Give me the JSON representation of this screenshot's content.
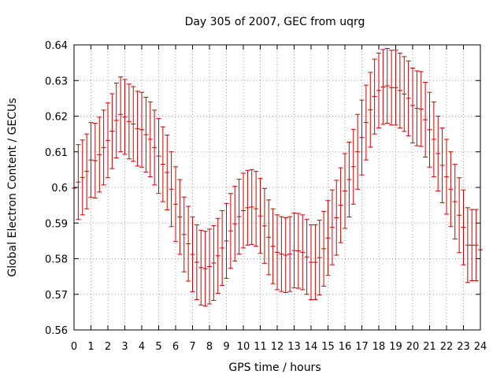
{
  "chart_data": {
    "type": "scatter",
    "title": "Day 305 of 2007, GEC from uqrg",
    "xlabel": "GPS time / hours",
    "ylabel": "Global Electron Content / GECUs",
    "xlim": [
      0,
      24
    ],
    "ylim": [
      0.56,
      0.64
    ],
    "xticks": [
      "0",
      "1",
      "2",
      "3",
      "4",
      "5",
      "6",
      "7",
      "8",
      "9",
      "10",
      "11",
      "12",
      "13",
      "14",
      "15",
      "16",
      "17",
      "18",
      "19",
      "20",
      "21",
      "22",
      "23",
      "24"
    ],
    "yticks": [
      "0.56",
      "0.57",
      "0.58",
      "0.59",
      "0.6",
      "0.61",
      "0.62",
      "0.63",
      "0.64"
    ],
    "grid": true,
    "error_color": "#cc0000",
    "series": [
      {
        "x": [
          0,
          0.25,
          0.5,
          0.75,
          1,
          1.25,
          1.5,
          1.75,
          2,
          2.25,
          2.5,
          2.75,
          3,
          3.25,
          3.5,
          3.75,
          4,
          4.25,
          4.5,
          4.75,
          5,
          5.25,
          5.5,
          5.75,
          6,
          6.25,
          6.5,
          6.75,
          7,
          7.25,
          7.5,
          7.75,
          8,
          8.25,
          8.5,
          8.75,
          9,
          9.25,
          9.5,
          9.75,
          10,
          10.25,
          10.5,
          10.75,
          11,
          11.25,
          11.5,
          11.75,
          12,
          12.25,
          12.5,
          12.75,
          13,
          13.25,
          13.5,
          13.75,
          14,
          14.25,
          14.5,
          14.75,
          15,
          15.25,
          15.5,
          15.75,
          16,
          16.25,
          16.5,
          16.75,
          17,
          17.25,
          17.5,
          17.75,
          18,
          18.25,
          18.5,
          18.75,
          19,
          19.25,
          19.5,
          19.75,
          20,
          20.25,
          20.5,
          20.75,
          21,
          21.25,
          21.5,
          21.75,
          22,
          22.25,
          22.5,
          22.75,
          23,
          23.25,
          23.5,
          23.75,
          24
        ],
        "y": [
          0.5998,
          0.6015,
          0.6028,
          0.6045,
          0.6077,
          0.6075,
          0.6092,
          0.6112,
          0.6132,
          0.6158,
          0.6188,
          0.6205,
          0.6198,
          0.6185,
          0.6178,
          0.6165,
          0.6162,
          0.6148,
          0.6135,
          0.6112,
          0.6088,
          0.6065,
          0.6042,
          0.5995,
          0.5953,
          0.5917,
          0.5868,
          0.5842,
          0.5812,
          0.579,
          0.5775,
          0.5772,
          0.5778,
          0.5788,
          0.5808,
          0.583,
          0.585,
          0.5878,
          0.5898,
          0.5918,
          0.5935,
          0.5943,
          0.5945,
          0.594,
          0.592,
          0.5892,
          0.586,
          0.5835,
          0.5818,
          0.5813,
          0.581,
          0.5813,
          0.5823,
          0.5822,
          0.5818,
          0.5805,
          0.579,
          0.579,
          0.5803,
          0.5828,
          0.5858,
          0.5888,
          0.5915,
          0.595,
          0.599,
          0.6022,
          0.6058,
          0.61,
          0.614,
          0.6182,
          0.6218,
          0.6255,
          0.6272,
          0.6282,
          0.6285,
          0.628,
          0.628,
          0.6272,
          0.6262,
          0.625,
          0.623,
          0.6222,
          0.622,
          0.619,
          0.6162,
          0.6135,
          0.6095,
          0.6062,
          0.603,
          0.5995,
          0.596,
          0.5922,
          0.5888,
          0.5838,
          0.5838,
          0.5838,
          0.5825
        ],
        "err": [
          0.0105,
          0.0105,
          0.0105,
          0.0105,
          0.0105,
          0.0105,
          0.0105,
          0.0105,
          0.0105,
          0.0105,
          0.0105,
          0.0105,
          0.0105,
          0.0105,
          0.0105,
          0.0105,
          0.0105,
          0.0105,
          0.0105,
          0.0105,
          0.0105,
          0.0105,
          0.0105,
          0.0105,
          0.0105,
          0.0105,
          0.0105,
          0.0105,
          0.0105,
          0.0105,
          0.0105,
          0.0105,
          0.0105,
          0.0105,
          0.0105,
          0.0105,
          0.0105,
          0.0105,
          0.0105,
          0.0105,
          0.0105,
          0.0105,
          0.0105,
          0.0105,
          0.0105,
          0.0105,
          0.0105,
          0.0105,
          0.0105,
          0.0105,
          0.0105,
          0.0105,
          0.0105,
          0.0105,
          0.0105,
          0.0105,
          0.0105,
          0.0105,
          0.0105,
          0.0105,
          0.0105,
          0.0105,
          0.0105,
          0.0105,
          0.0105,
          0.0105,
          0.0105,
          0.0105,
          0.0105,
          0.0105,
          0.0105,
          0.0105,
          0.0105,
          0.0105,
          0.0105,
          0.0105,
          0.0105,
          0.0105,
          0.0105,
          0.0105,
          0.0105,
          0.0105,
          0.0105,
          0.0105,
          0.0105,
          0.0105,
          0.0105,
          0.0105,
          0.0105,
          0.0105,
          0.0105,
          0.0105,
          0.0105,
          0.0105,
          0.01,
          0.01,
          0.01
        ]
      }
    ]
  }
}
